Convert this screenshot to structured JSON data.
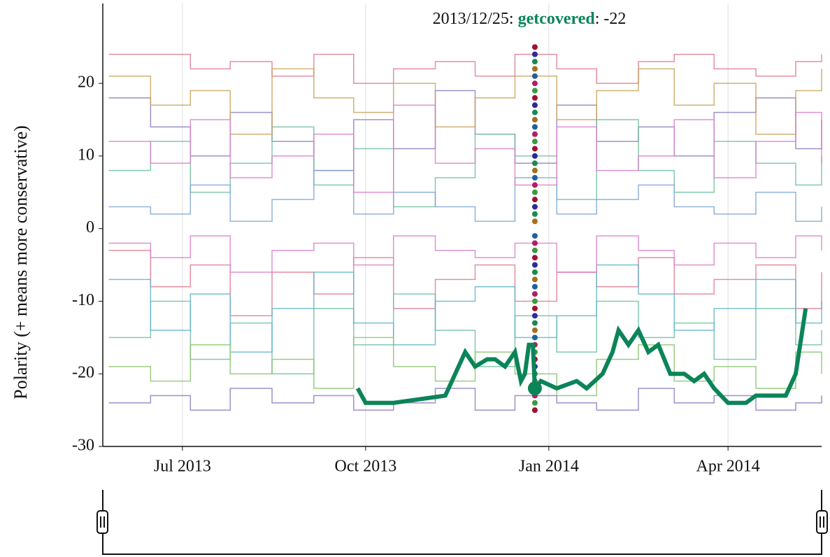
{
  "chart_data": {
    "type": "line",
    "ylabel": "Polarity (+ means more conservative)",
    "ylim": [
      -30,
      31
    ],
    "yticks": [
      -30,
      -20,
      -10,
      0,
      10,
      20
    ],
    "xlim": [
      "2013-05-22",
      "2014-05-18"
    ],
    "xticks": [
      {
        "value": "2013-07-01",
        "label": "Jul 2013"
      },
      {
        "value": "2013-10-01",
        "label": "Oct 2013"
      },
      {
        "value": "2014-01-01",
        "label": "Jan 2014"
      },
      {
        "value": "2014-04-01",
        "label": "Apr 2014"
      }
    ],
    "grid": true,
    "background_x": [
      "2013-05-25",
      "2013-06-15",
      "2013-07-05",
      "2013-07-25",
      "2013-08-15",
      "2013-09-05",
      "2013-09-25",
      "2013-10-15",
      "2013-11-05",
      "2013-11-25",
      "2013-12-15",
      "2014-01-05",
      "2014-01-25",
      "2014-02-15",
      "2014-03-05",
      "2014-03-25",
      "2014-04-15",
      "2014-05-05",
      "2014-05-18"
    ],
    "background_series": [
      {
        "color": "#e07b91",
        "values": [
          24,
          24,
          22,
          23,
          21,
          24,
          20,
          22,
          23,
          21,
          24,
          22,
          20,
          23,
          24,
          22,
          21,
          23,
          24
        ]
      },
      {
        "color": "#8e7cc3",
        "values": [
          18,
          14,
          10,
          16,
          12,
          8,
          15,
          11,
          19,
          13,
          9,
          17,
          12,
          14,
          10,
          16,
          18,
          11,
          15
        ]
      },
      {
        "color": "#6fc0a0",
        "values": [
          8,
          12,
          5,
          9,
          14,
          6,
          11,
          3,
          7,
          13,
          10,
          4,
          15,
          8,
          5,
          12,
          9,
          6,
          10
        ]
      },
      {
        "color": "#7fa6d9",
        "values": [
          3,
          2,
          6,
          1,
          4,
          8,
          2,
          5,
          3,
          1,
          7,
          2,
          4,
          6,
          3,
          2,
          5,
          1,
          3
        ]
      },
      {
        "color": "#c9a35a",
        "values": [
          21,
          17,
          19,
          13,
          22,
          18,
          16,
          20,
          14,
          18,
          21,
          15,
          19,
          22,
          17,
          20,
          13,
          19,
          22
        ]
      },
      {
        "color": "#d97fc9",
        "values": [
          12,
          9,
          15,
          7,
          10,
          13,
          5,
          17,
          9,
          11,
          6,
          14,
          8,
          10,
          15,
          7,
          12,
          16,
          9
        ]
      },
      {
        "color": "#e07b91",
        "values": [
          -3,
          -8,
          -5,
          -12,
          -6,
          -9,
          -4,
          -11,
          -7,
          -5,
          -10,
          -6,
          -8,
          -4,
          -9,
          -7,
          -5,
          -11,
          -6
        ]
      },
      {
        "color": "#6fc0a0",
        "values": [
          -15,
          -10,
          -18,
          -13,
          -20,
          -11,
          -16,
          -9,
          -14,
          -19,
          -12,
          -17,
          -10,
          -15,
          -13,
          -18,
          -11,
          -16,
          -14
        ]
      },
      {
        "color": "#8e7cc3",
        "values": [
          -24,
          -23,
          -25,
          -22,
          -24,
          -23,
          -25,
          -24,
          -22,
          -25,
          -23,
          -24,
          -25,
          -22,
          -24,
          -23,
          -25,
          -24,
          -23
        ]
      },
      {
        "color": "#5fb5c9",
        "values": [
          -7,
          -14,
          -9,
          -17,
          -11,
          -6,
          -13,
          -16,
          -10,
          -8,
          -15,
          -12,
          -5,
          -9,
          -14,
          -11,
          -7,
          -13,
          -10
        ]
      },
      {
        "color": "#88c46b",
        "values": [
          -19,
          -21,
          -16,
          -20,
          -18,
          -22,
          -15,
          -19,
          -21,
          -17,
          -20,
          -23,
          -18,
          -16,
          -21,
          -19,
          -22,
          -17,
          -20
        ]
      },
      {
        "color": "#d97fc9",
        "values": [
          -2,
          -4,
          -1,
          -6,
          -3,
          -2,
          -5,
          -1,
          -3,
          -4,
          -2,
          -6,
          -1,
          -3,
          -5,
          -2,
          -4,
          -1,
          -3
        ]
      }
    ],
    "series": [
      {
        "name": "getcovered",
        "color": "#0b8458",
        "x": [
          "2013-09-27",
          "2013-10-01",
          "2013-10-15",
          "2013-11-10",
          "2013-11-15",
          "2013-11-20",
          "2013-11-25",
          "2013-12-01",
          "2013-12-05",
          "2013-12-10",
          "2013-12-15",
          "2013-12-18",
          "2013-12-20",
          "2013-12-22",
          "2013-12-24",
          "2013-12-25",
          "2013-12-28",
          "2014-01-05",
          "2014-01-15",
          "2014-01-20",
          "2014-01-28",
          "2014-02-02",
          "2014-02-05",
          "2014-02-10",
          "2014-02-15",
          "2014-02-20",
          "2014-02-25",
          "2014-03-03",
          "2014-03-10",
          "2014-03-15",
          "2014-03-20",
          "2014-03-25",
          "2014-04-01",
          "2014-04-10",
          "2014-04-15",
          "2014-04-30",
          "2014-05-05",
          "2014-05-10"
        ],
        "values": [
          -22,
          -24,
          -24,
          -23,
          -20,
          -17,
          -19,
          -18,
          -18,
          -19,
          -17,
          -21,
          -20,
          -16,
          -16,
          -22,
          -21,
          -22,
          -21,
          -22,
          -20,
          -17,
          -14,
          -16,
          -14,
          -17,
          -16,
          -20,
          -20,
          -21,
          -20,
          -22,
          -24,
          -24,
          -23,
          -23,
          -20,
          -11
        ]
      }
    ],
    "hover": {
      "date": "2013-12-25",
      "prefix": "2013/12/25:",
      "suffix": ": -22"
    },
    "hover_points": [
      25,
      24,
      23,
      22,
      21,
      20,
      19,
      18,
      17,
      16,
      15,
      14,
      13,
      12,
      11,
      10,
      9,
      8,
      7,
      6,
      5,
      4,
      3,
      2,
      1,
      -1,
      -2,
      -3,
      -4,
      -5,
      -6,
      -7,
      -8,
      -9,
      -10,
      -11,
      -12,
      -13,
      -14,
      -15,
      -16,
      -17,
      -18,
      -19,
      -20,
      -21,
      -22,
      -23,
      -24,
      -25
    ],
    "hover_colors": [
      "#a01030",
      "#2a2a9a",
      "#1a8a50",
      "#a07020",
      "#2060a0",
      "#b02060",
      "#3a9a40"
    ]
  }
}
